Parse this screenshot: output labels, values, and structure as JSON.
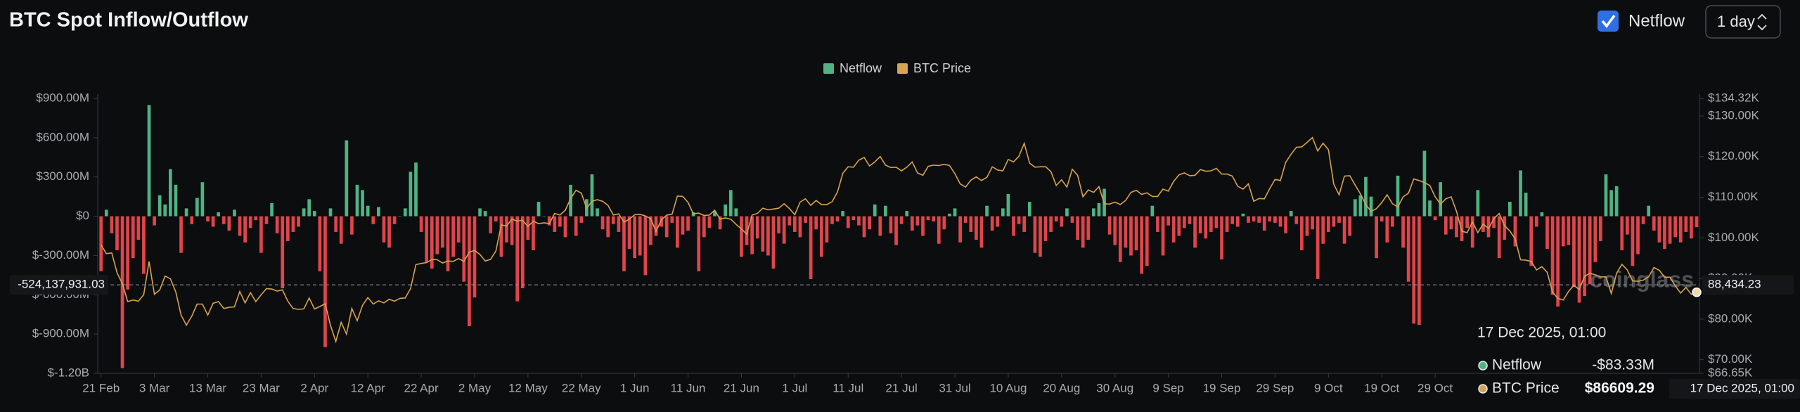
{
  "chart_data": {
    "type": "bar-line",
    "title": "BTC Spot Inflow/Outflow",
    "categories": [
      "21 Feb",
      null,
      null,
      null,
      null,
      null,
      null,
      null,
      null,
      null,
      "3 Mar",
      null,
      null,
      null,
      null,
      null,
      null,
      null,
      null,
      null,
      "13 Mar",
      null,
      null,
      null,
      null,
      null,
      null,
      null,
      null,
      null,
      "23 Mar",
      null,
      null,
      null,
      null,
      null,
      null,
      null,
      null,
      null,
      "2 Apr",
      null,
      null,
      null,
      null,
      null,
      null,
      null,
      null,
      null,
      "12 Apr",
      null,
      null,
      null,
      null,
      null,
      null,
      null,
      null,
      null,
      "22 Apr",
      null,
      null,
      null,
      null,
      null,
      null,
      null,
      null,
      null,
      "2 May",
      null,
      null,
      null,
      null,
      null,
      null,
      null,
      null,
      null,
      "12 May",
      null,
      null,
      null,
      null,
      null,
      null,
      null,
      null,
      null,
      "22 May",
      null,
      null,
      null,
      null,
      null,
      null,
      null,
      null,
      null,
      "1 Jun",
      null,
      null,
      null,
      null,
      null,
      null,
      null,
      null,
      null,
      "11 Jun",
      null,
      null,
      null,
      null,
      null,
      null,
      null,
      null,
      null,
      "21 Jun",
      null,
      null,
      null,
      null,
      null,
      null,
      null,
      null,
      null,
      "1 Jul",
      null,
      null,
      null,
      null,
      null,
      null,
      null,
      null,
      null,
      "11 Jul",
      null,
      null,
      null,
      null,
      null,
      null,
      null,
      null,
      null,
      "21 Jul",
      null,
      null,
      null,
      null,
      null,
      null,
      null,
      null,
      null,
      "31 Jul",
      null,
      null,
      null,
      null,
      null,
      null,
      null,
      null,
      null,
      "10 Aug",
      null,
      null,
      null,
      null,
      null,
      null,
      null,
      null,
      null,
      "20 Aug",
      null,
      null,
      null,
      null,
      null,
      null,
      null,
      null,
      null,
      "30 Aug",
      null,
      null,
      null,
      null,
      null,
      null,
      null,
      null,
      null,
      "9 Sep",
      null,
      null,
      null,
      null,
      null,
      null,
      null,
      null,
      null,
      "19 Sep",
      null,
      null,
      null,
      null,
      null,
      null,
      null,
      null,
      null,
      "29 Sep",
      null,
      null,
      null,
      null,
      null,
      null,
      null,
      null,
      null,
      "9 Oct",
      null,
      null,
      null,
      null,
      null,
      null,
      null,
      null,
      null,
      "19 Oct",
      null,
      null,
      null,
      null,
      null,
      null,
      null,
      null,
      null,
      "29 Oct",
      null,
      null,
      null,
      null,
      null,
      null,
      null,
      null,
      null,
      null,
      null,
      null,
      null,
      null,
      null,
      null,
      null,
      null,
      null,
      null,
      null,
      null,
      null,
      null,
      null,
      null,
      null,
      null,
      null,
      null,
      null,
      null,
      null,
      null,
      null,
      null,
      null,
      null,
      null,
      null,
      null,
      null,
      null,
      null,
      null,
      null,
      null,
      null,
      null
    ],
    "series": [
      {
        "name": "Netflow",
        "color": "#4fb384",
        "negative_color": "#e0454b",
        "values": [
          -420000000.0,
          50000000.0,
          -130000000.0,
          -260000000.0,
          -1160000000.0,
          -560000000.0,
          -320000000.0,
          -180000000.0,
          -440000000.0,
          850000000.0,
          -70000000.0,
          160000000.0,
          90000000.0,
          360000000.0,
          240000000.0,
          -280000000.0,
          60000000.0,
          -60000000.0,
          140000000.0,
          260000000.0,
          -40000000.0,
          -80000000.0,
          30000000.0,
          -60000000.0,
          -110000000.0,
          50000000.0,
          -150000000.0,
          -200000000.0,
          -90000000.0,
          -30000000.0,
          -280000000.0,
          -60000000.0,
          100000000.0,
          -130000000.0,
          -550000000.0,
          -190000000.0,
          -120000000.0,
          -80000000.0,
          60000000.0,
          130000000.0,
          40000000.0,
          -420000000.0,
          -1000000000.0,
          60000000.0,
          -120000000.0,
          -210000000.0,
          580000000.0,
          -140000000.0,
          240000000.0,
          200000000.0,
          80000000.0,
          -60000000.0,
          70000000.0,
          -200000000.0,
          -240000000.0,
          -60000000.0,
          0,
          60000000.0,
          340000000.0,
          410000000.0,
          -120000000.0,
          -350000000.0,
          -400000000.0,
          -290000000.0,
          -240000000.0,
          -420000000.0,
          -310000000.0,
          -200000000.0,
          -500000000.0,
          -840000000.0,
          -620000000.0,
          60000000.0,
          40000000.0,
          -130000000.0,
          -40000000.0,
          -310000000.0,
          -200000000.0,
          -220000000.0,
          -650000000.0,
          -550000000.0,
          -180000000.0,
          -260000000.0,
          110000000.0,
          0,
          -70000000.0,
          -120000000.0,
          -80000000.0,
          -160000000.0,
          240000000.0,
          -150000000.0,
          -50000000.0,
          130000000.0,
          320000000.0,
          60000000.0,
          -100000000.0,
          -160000000.0,
          -60000000.0,
          -120000000.0,
          -420000000.0,
          -250000000.0,
          -320000000.0,
          -300000000.0,
          -450000000.0,
          -220000000.0,
          -150000000.0,
          -80000000.0,
          -160000000.0,
          -50000000.0,
          -240000000.0,
          -140000000.0,
          -110000000.0,
          30000000.0,
          -420000000.0,
          -160000000.0,
          -90000000.0,
          40000000.0,
          -100000000.0,
          90000000.0,
          200000000.0,
          60000000.0,
          -310000000.0,
          -220000000.0,
          -290000000.0,
          -170000000.0,
          -270000000.0,
          -300000000.0,
          -400000000.0,
          -130000000.0,
          -210000000.0,
          -70000000.0,
          -120000000.0,
          -160000000.0,
          -50000000.0,
          -480000000.0,
          -100000000.0,
          -310000000.0,
          -200000000.0,
          -60000000.0,
          -40000000.0,
          40000000.0,
          -90000000.0,
          -30000000.0,
          -70000000.0,
          -160000000.0,
          -100000000.0,
          90000000.0,
          -150000000.0,
          80000000.0,
          -130000000.0,
          -220000000.0,
          -60000000.0,
          40000000.0,
          -110000000.0,
          -70000000.0,
          -150000000.0,
          -30000000.0,
          -40000000.0,
          -210000000.0,
          -100000000.0,
          20000000.0,
          60000000.0,
          -200000000.0,
          -50000000.0,
          -120000000.0,
          -180000000.0,
          -240000000.0,
          80000000.0,
          -110000000.0,
          -80000000.0,
          60000000.0,
          170000000.0,
          -150000000.0,
          -60000000.0,
          -120000000.0,
          110000000.0,
          -280000000.0,
          -310000000.0,
          -190000000.0,
          -120000000.0,
          -40000000.0,
          -80000000.0,
          60000000.0,
          -50000000.0,
          -180000000.0,
          -240000000.0,
          -180000000.0,
          60000000.0,
          100000000.0,
          210000000.0,
          -140000000.0,
          -220000000.0,
          -350000000.0,
          -240000000.0,
          -300000000.0,
          -260000000.0,
          -440000000.0,
          -380000000.0,
          80000000.0,
          -120000000.0,
          -300000000.0,
          -70000000.0,
          -200000000.0,
          -150000000.0,
          -90000000.0,
          -60000000.0,
          -240000000.0,
          -130000000.0,
          -170000000.0,
          -120000000.0,
          -90000000.0,
          -330000000.0,
          -120000000.0,
          -60000000.0,
          -80000000.0,
          20000000.0,
          -50000000.0,
          -40000000.0,
          -50000000.0,
          -110000000.0,
          -40000000.0,
          -50000000.0,
          -80000000.0,
          -130000000.0,
          40000000.0,
          -60000000.0,
          -260000000.0,
          -150000000.0,
          -100000000.0,
          -480000000.0,
          -210000000.0,
          -120000000.0,
          -80000000.0,
          -50000000.0,
          -210000000.0,
          -150000000.0,
          130000000.0,
          160000000.0,
          300000000.0,
          150000000.0,
          -320000000.0,
          -40000000.0,
          -200000000.0,
          -80000000.0,
          310000000.0,
          -240000000.0,
          -500000000.0,
          -820000000.0,
          -830000000.0,
          500000000.0,
          120000000.0,
          -30000000.0,
          260000000.0,
          -140000000.0,
          -100000000.0,
          -160000000.0,
          -190000000.0,
          -90000000.0,
          -240000000.0,
          200000000.0,
          -120000000.0,
          -160000000.0,
          -90000000.0,
          -320000000.0,
          -180000000.0,
          110000000.0,
          -230000000.0,
          350000000.0,
          180000000.0,
          -380000000.0,
          -80000000.0,
          30000000.0,
          -250000000.0,
          -600000000.0,
          -690000000.0,
          -230000000.0,
          -220000000.0,
          -540000000.0,
          -660000000.0,
          -610000000.0,
          -520000000.0,
          -350000000.0,
          -190000000.0,
          320000000.0,
          200000000.0,
          230000000.0,
          -260000000.0,
          -140000000.0,
          -380000000.0,
          -290000000.0,
          -60000000.0,
          80000000.0,
          -110000000.0,
          -200000000.0,
          -250000000.0,
          -210000000.0,
          -160000000.0,
          -200000000.0,
          -120000000.0,
          -170000000.0,
          -83330000.0
        ]
      },
      {
        "name": "BTC Price",
        "color": "#d6a350",
        "axis": "y2",
        "values": [
          98300,
          96100,
          96300,
          91400,
          88700,
          84300,
          84700,
          84400,
          86000,
          94200,
          86100,
          87200,
          90600,
          89900,
          86700,
          81000,
          78500,
          80700,
          83700,
          83700,
          81000,
          83900,
          84300,
          82600,
          82900,
          83000,
          86800,
          84000,
          86500,
          84300,
          86000,
          87500,
          87400,
          86900,
          87200,
          84400,
          82600,
          82400,
          82500,
          85200,
          82500,
          83100,
          83800,
          78400,
          74500,
          79200,
          76300,
          82600,
          79600,
          83400,
          85300,
          83700,
          84500,
          84000,
          84900,
          84400,
          85100,
          85200,
          87500,
          93400,
          93700,
          93900,
          94700,
          94600,
          93800,
          94300,
          94200,
          94900,
          94200,
          96500,
          96900,
          95900,
          94300,
          94700,
          96800,
          103200,
          102900,
          104600,
          104100,
          104300,
          102800,
          104100,
          103500,
          103700,
          103500,
          106000,
          105600,
          106800,
          109700,
          111700,
          111000,
          107300,
          109000,
          109400,
          109000,
          108000,
          105600,
          105900,
          103900,
          104600,
          105700,
          105800,
          105400,
          104700,
          101600,
          104400,
          105600,
          105800,
          110300,
          110200,
          108700,
          105900,
          106100,
          105500,
          105600,
          106800,
          104600,
          104900,
          104600,
          103300,
          102200,
          100900,
          105600,
          106000,
          107300,
          106900,
          107100,
          107300,
          108400,
          107200,
          105700,
          108800,
          109600,
          108000,
          109200,
          108200,
          108200,
          108900,
          111300,
          115900,
          117500,
          117400,
          119100,
          119800,
          117700,
          118700,
          120000,
          117900,
          117300,
          117400,
          116500,
          117400,
          118700,
          116000,
          115400,
          117600,
          117900,
          117800,
          118100,
          117800,
          115800,
          113300,
          112500,
          114200,
          115000,
          114100,
          114900,
          117500,
          116700,
          116500,
          119300,
          118700,
          120100,
          123300,
          118400,
          117400,
          117500,
          117500,
          116300,
          112900,
          114300,
          112500,
          116900,
          115400,
          110100,
          111800,
          111200,
          112600,
          108400,
          108300,
          108800,
          108200,
          109200,
          111200,
          111700,
          110700,
          111100,
          110200,
          110200,
          112000,
          111500,
          113900,
          115500,
          116000,
          115300,
          115400,
          116800,
          116400,
          116500,
          117100,
          115700,
          115700,
          115200,
          112700,
          112000,
          113300,
          109000,
          109700,
          109600,
          112100,
          114400,
          114100,
          118600,
          120600,
          122300,
          122400,
          123500,
          124700,
          121400,
          123300,
          121700,
          113200,
          110600,
          115200,
          115300,
          113000,
          110800,
          108200,
          106500,
          107200,
          108700,
          110600,
          108400,
          107600,
          110100,
          111000,
          114500,
          114100,
          113600,
          112900,
          110100,
          108300,
          109600,
          110100,
          106500,
          101600,
          101300,
          103900,
          101300,
          103400,
          102300,
          104700,
          106000,
          103000,
          101700,
          99700,
          94600,
          94500,
          94200,
          92100,
          92900,
          91500,
          86600,
          85100,
          84700,
          86800,
          88300,
          87300,
          90500,
          91300,
          90900,
          90400,
          90400,
          86300,
          91300,
          93500,
          92100,
          89400,
          89300,
          89600,
          90400,
          92700,
          92000,
          90300,
          90300,
          88200,
          86400,
          87800,
          86100,
          86609.29
        ]
      }
    ],
    "ylim": [
      -1200000000,
      900000000
    ],
    "yticks": [
      {
        "value": 900000000,
        "label": "$900.00M"
      },
      {
        "value": 600000000,
        "label": "$600.00M"
      },
      {
        "value": 300000000,
        "label": "$300.00M"
      },
      {
        "value": 0,
        "label": "$0"
      },
      {
        "value": -300000000,
        "label": "$-300.00M"
      },
      {
        "value": -600000000,
        "label": "$-600.00M"
      },
      {
        "value": -900000000,
        "label": "$-900.00M"
      },
      {
        "value": -1200000000,
        "label": "$-1.20B"
      }
    ],
    "y2lim": [
      66650,
      134320
    ],
    "y2ticks": [
      {
        "value": 134320,
        "label": "$134.32K"
      },
      {
        "value": 130000,
        "label": "$130.00K"
      },
      {
        "value": 120000,
        "label": "$120.00K"
      },
      {
        "value": 110000,
        "label": "$110.00K"
      },
      {
        "value": 100000,
        "label": "$100.00K"
      },
      {
        "value": 90000,
        "label": "$90.00K"
      },
      {
        "value": 80000,
        "label": "$80.00K"
      },
      {
        "value": 70000,
        "label": "$70.00K"
      },
      {
        "value": 66650,
        "label": "$66.65K"
      }
    ],
    "legend": "top"
  },
  "header": {
    "toggle_label": "Netflow",
    "interval": "1 day"
  },
  "crosshair": {
    "y": {
      "value": -524137931.03,
      "label": "-524,137,931.03"
    },
    "y2": {
      "value": 88434.23,
      "label": "88,434.23"
    }
  },
  "tooltip": {
    "title": "17 Dec 2025, 01:00",
    "values": [
      -83330000,
      86609.29
    ],
    "value_labels": [
      "-$83.33M",
      "$86609.29"
    ]
  },
  "watermark": "coinglass"
}
